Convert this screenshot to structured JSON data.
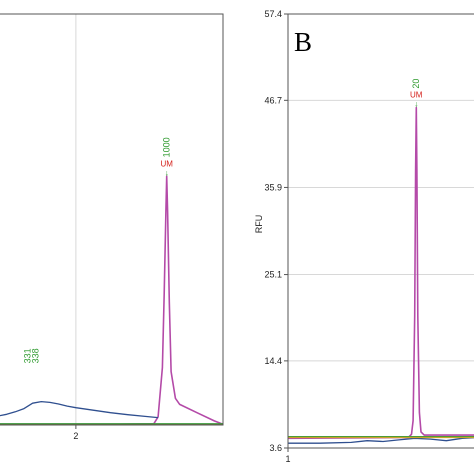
{
  "colors": {
    "pink_trace": "#b44aa8",
    "blue_trace": "#2f4f8f",
    "green_trace": "#3a9a3a",
    "red_trace": "#d23a2a",
    "gold_trace": "#c9a227",
    "peak_green": "#2e9a2e",
    "peak_red": "#d4201a",
    "grid": "#d8d8d8",
    "frame": "#555555"
  },
  "chart_data": [
    {
      "type": "line",
      "panel_label": "",
      "xlabel": "",
      "ylabel": "",
      "xlim": [
        1.1,
        3.7
      ],
      "ylim": [
        0,
        100
      ],
      "x_ticks": [
        {
          "value": 2,
          "label": "2"
        }
      ],
      "y_ticks": [],
      "grid": true,
      "peak_labels": [
        {
          "x": 3.05,
          "y": 60.5,
          "label": "1000",
          "sub": "UM",
          "arrow": "↓"
        },
        {
          "x": 1.5,
          "y": 15,
          "label": "331",
          "sub": "338"
        }
      ],
      "series": [
        {
          "color_key": "pink_trace",
          "x": [
            1.1,
            1.5,
            2.0,
            2.5,
            2.9,
            2.95,
            3.0,
            3.02,
            3.04,
            3.05,
            3.06,
            3.08,
            3.1,
            3.15,
            3.2,
            3.4,
            3.6,
            3.7
          ],
          "y": [
            0.2,
            0.2,
            0.2,
            0.2,
            0.3,
            2,
            14,
            32,
            52,
            60.5,
            52,
            30,
            13,
            6.5,
            5,
            3,
            1,
            0.2
          ]
        },
        {
          "color_key": "blue_trace",
          "x": [
            1.1,
            1.2,
            1.3,
            1.4,
            1.5,
            1.6,
            1.7,
            1.8,
            1.9,
            2.0,
            2.2,
            2.4,
            2.6,
            2.8,
            2.95
          ],
          "y": [
            2.2,
            2.6,
            3.2,
            4,
            5.3,
            5.7,
            5.5,
            5.1,
            4.6,
            4.2,
            3.6,
            3.0,
            2.5,
            2.1,
            1.8
          ]
        },
        {
          "color_key": "green_trace",
          "x": [
            1.1,
            3.7
          ],
          "y": [
            0.3,
            0.3
          ]
        },
        {
          "color_key": "red_trace",
          "x": [
            1.1,
            3.7
          ],
          "y": [
            0.0,
            0.0
          ]
        }
      ]
    },
    {
      "type": "line",
      "panel_label": "B",
      "xlabel": "",
      "ylabel": "RFU",
      "xlim": [
        1,
        1.6
      ],
      "ylim": [
        3.6,
        57.4
      ],
      "x_ticks": [
        {
          "value": 1,
          "label": "1"
        }
      ],
      "y_ticks": [
        {
          "value": 3.6,
          "label": "3.6"
        },
        {
          "value": 14.4,
          "label": "14.4"
        },
        {
          "value": 25.1,
          "label": "25.1"
        },
        {
          "value": 35.9,
          "label": "35.9"
        },
        {
          "value": 46.7,
          "label": "46.7"
        },
        {
          "value": 57.4,
          "label": "57.4"
        }
      ],
      "grid": true,
      "peak_labels": [
        {
          "x": 1.405,
          "y": 45.8,
          "label": "20",
          "sub": "UM",
          "arrow": "↓"
        }
      ],
      "series": [
        {
          "color_key": "pink_trace",
          "x": [
            1.0,
            1.38,
            1.39,
            1.395,
            1.4,
            1.403,
            1.405,
            1.407,
            1.41,
            1.415,
            1.42,
            1.43,
            1.6
          ],
          "y": [
            4.8,
            4.9,
            5.3,
            7,
            20,
            38,
            45.8,
            38,
            20,
            8,
            5.6,
            5.2,
            5.2
          ]
        },
        {
          "color_key": "blue_trace",
          "x": [
            1.0,
            1.1,
            1.2,
            1.25,
            1.3,
            1.35,
            1.4,
            1.45,
            1.5,
            1.55,
            1.6
          ],
          "y": [
            4.2,
            4.2,
            4.3,
            4.5,
            4.4,
            4.6,
            4.8,
            4.7,
            4.5,
            4.8,
            4.9
          ]
        },
        {
          "color_key": "green_trace",
          "x": [
            1.0,
            1.6
          ],
          "y": [
            5.0,
            5.0
          ]
        },
        {
          "color_key": "gold_trace",
          "x": [
            1.0,
            1.6
          ],
          "y": [
            4.9,
            4.9
          ]
        }
      ]
    }
  ]
}
